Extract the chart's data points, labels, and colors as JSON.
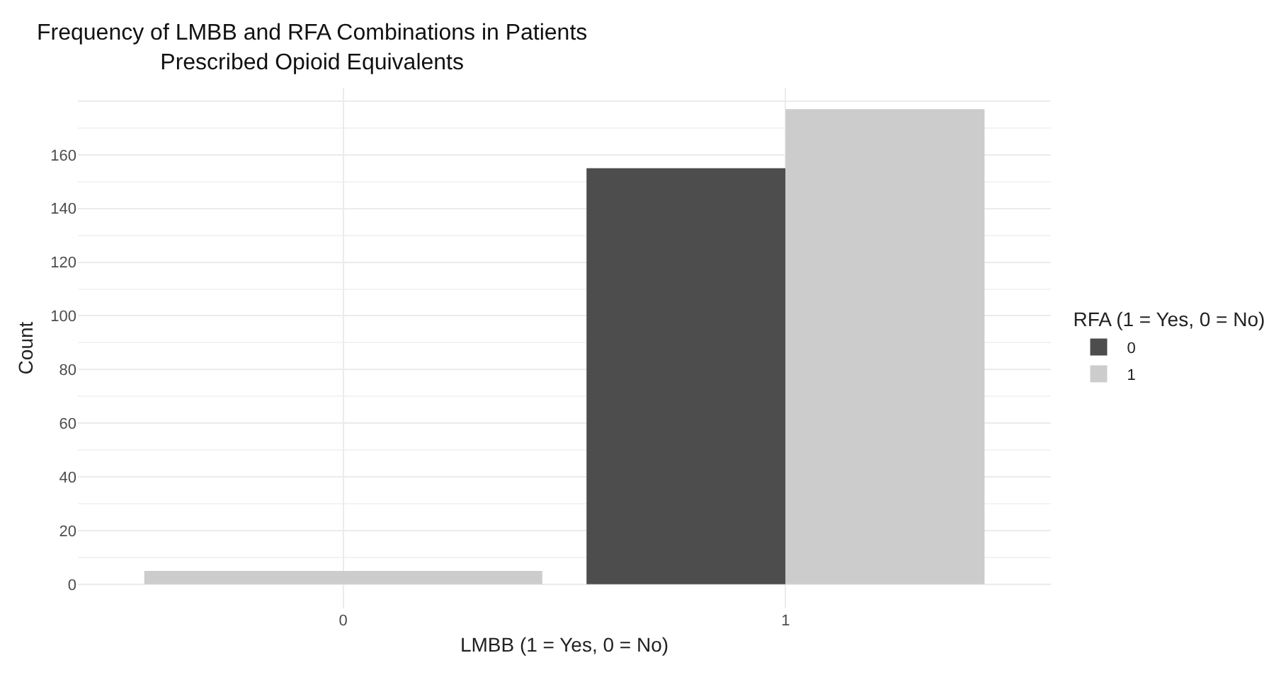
{
  "chart_data": {
    "type": "bar",
    "title": "Frequency of LMBB and RFA Combinations in Patients\nPrescribed Opioid Equivalents",
    "xlabel": "LMBB (1 = Yes, 0 = No)",
    "ylabel": "Count",
    "legend_title": "RFA (1 = Yes, 0 = No)",
    "categories": [
      "0",
      "1"
    ],
    "series": [
      {
        "name": "0",
        "color": "#4d4d4d",
        "values": [
          null,
          155
        ]
      },
      {
        "name": "1",
        "color": "#cccccc",
        "values": [
          5,
          177
        ]
      }
    ],
    "ylim": [
      -9,
      185
    ],
    "yticks": [
      0,
      20,
      40,
      60,
      80,
      100,
      120,
      140,
      160,
      {
        "value": 180,
        "label": null
      }
    ],
    "grid": true,
    "legend": "right"
  }
}
